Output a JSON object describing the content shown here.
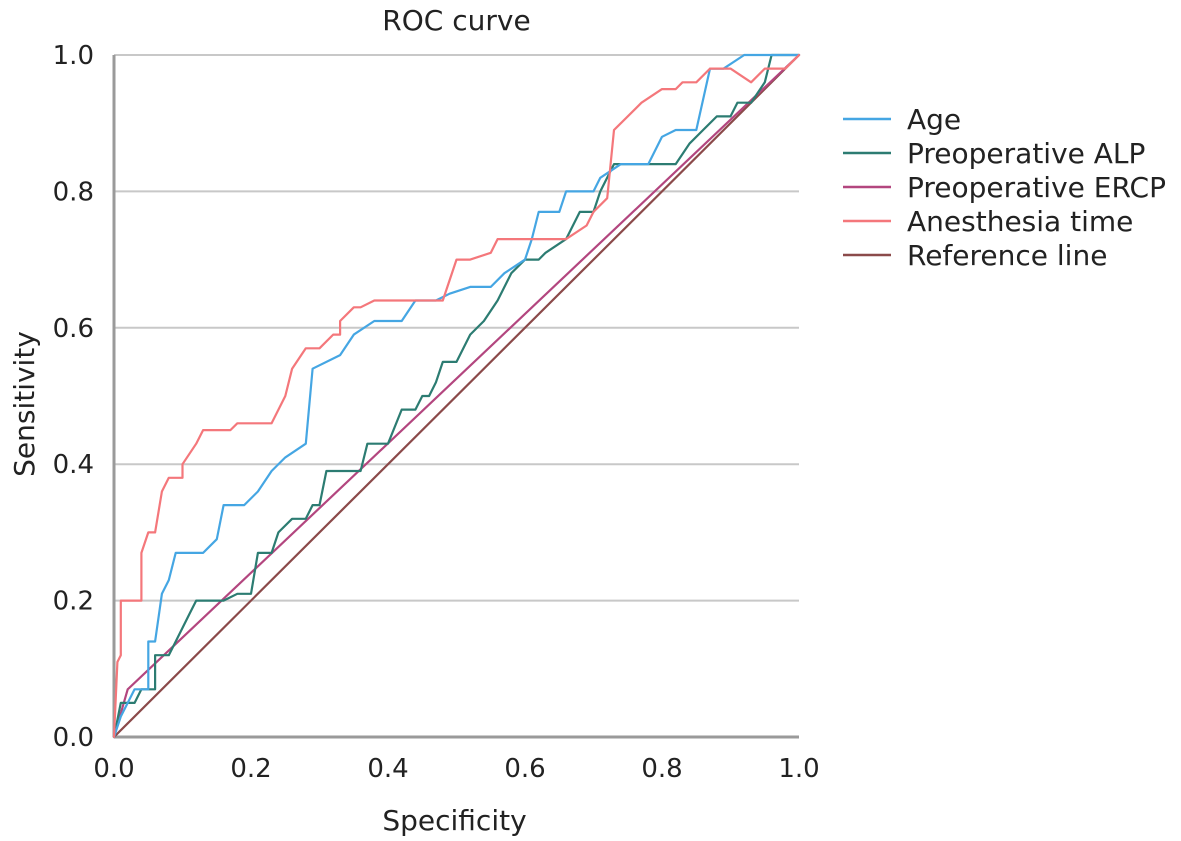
{
  "chart_data": {
    "type": "line",
    "title": "ROC curve",
    "xlabel": "Specificity",
    "ylabel": "Sensitivity",
    "xlim": [
      0,
      1
    ],
    "ylim": [
      0,
      1
    ],
    "xticks": [
      "0.0",
      "0.2",
      "0.4",
      "0.6",
      "0.8",
      "1.0"
    ],
    "yticks": [
      "0.0",
      "0.2",
      "0.4",
      "0.6",
      "0.8",
      "1.0"
    ],
    "grid": "horizontal",
    "legend_position": "right",
    "series": [
      {
        "name": "Age",
        "color": "#45a6e3",
        "points": [
          [
            0,
            0
          ],
          [
            0.01,
            0.03
          ],
          [
            0.02,
            0.05
          ],
          [
            0.03,
            0.07
          ],
          [
            0.05,
            0.07
          ],
          [
            0.05,
            0.14
          ],
          [
            0.06,
            0.14
          ],
          [
            0.07,
            0.21
          ],
          [
            0.08,
            0.23
          ],
          [
            0.09,
            0.27
          ],
          [
            0.13,
            0.27
          ],
          [
            0.15,
            0.29
          ],
          [
            0.16,
            0.34
          ],
          [
            0.19,
            0.34
          ],
          [
            0.21,
            0.36
          ],
          [
            0.23,
            0.39
          ],
          [
            0.25,
            0.41
          ],
          [
            0.28,
            0.43
          ],
          [
            0.29,
            0.54
          ],
          [
            0.33,
            0.56
          ],
          [
            0.35,
            0.59
          ],
          [
            0.38,
            0.61
          ],
          [
            0.42,
            0.61
          ],
          [
            0.44,
            0.64
          ],
          [
            0.47,
            0.64
          ],
          [
            0.49,
            0.65
          ],
          [
            0.52,
            0.66
          ],
          [
            0.55,
            0.66
          ],
          [
            0.57,
            0.68
          ],
          [
            0.6,
            0.7
          ],
          [
            0.61,
            0.73
          ],
          [
            0.62,
            0.77
          ],
          [
            0.65,
            0.77
          ],
          [
            0.66,
            0.8
          ],
          [
            0.7,
            0.8
          ],
          [
            0.71,
            0.82
          ],
          [
            0.74,
            0.84
          ],
          [
            0.78,
            0.84
          ],
          [
            0.8,
            0.88
          ],
          [
            0.82,
            0.89
          ],
          [
            0.85,
            0.89
          ],
          [
            0.87,
            0.98
          ],
          [
            0.89,
            0.98
          ],
          [
            0.92,
            1
          ],
          [
            1,
            1
          ]
        ]
      },
      {
        "name": "Preoperative ALP",
        "color": "#2c7c72",
        "points": [
          [
            0,
            0
          ],
          [
            0.01,
            0.05
          ],
          [
            0.03,
            0.05
          ],
          [
            0.04,
            0.07
          ],
          [
            0.06,
            0.07
          ],
          [
            0.06,
            0.12
          ],
          [
            0.08,
            0.12
          ],
          [
            0.09,
            0.14
          ],
          [
            0.1,
            0.16
          ],
          [
            0.11,
            0.18
          ],
          [
            0.12,
            0.2
          ],
          [
            0.16,
            0.2
          ],
          [
            0.18,
            0.21
          ],
          [
            0.2,
            0.21
          ],
          [
            0.21,
            0.27
          ],
          [
            0.23,
            0.27
          ],
          [
            0.24,
            0.3
          ],
          [
            0.26,
            0.32
          ],
          [
            0.28,
            0.32
          ],
          [
            0.29,
            0.34
          ],
          [
            0.3,
            0.34
          ],
          [
            0.31,
            0.39
          ],
          [
            0.36,
            0.39
          ],
          [
            0.37,
            0.43
          ],
          [
            0.4,
            0.43
          ],
          [
            0.42,
            0.48
          ],
          [
            0.44,
            0.48
          ],
          [
            0.45,
            0.5
          ],
          [
            0.46,
            0.5
          ],
          [
            0.47,
            0.52
          ],
          [
            0.48,
            0.55
          ],
          [
            0.5,
            0.55
          ],
          [
            0.52,
            0.59
          ],
          [
            0.54,
            0.61
          ],
          [
            0.56,
            0.64
          ],
          [
            0.58,
            0.68
          ],
          [
            0.6,
            0.7
          ],
          [
            0.62,
            0.7
          ],
          [
            0.63,
            0.71
          ],
          [
            0.66,
            0.73
          ],
          [
            0.68,
            0.77
          ],
          [
            0.7,
            0.77
          ],
          [
            0.71,
            0.8
          ],
          [
            0.73,
            0.84
          ],
          [
            0.82,
            0.84
          ],
          [
            0.84,
            0.87
          ],
          [
            0.86,
            0.89
          ],
          [
            0.88,
            0.91
          ],
          [
            0.9,
            0.91
          ],
          [
            0.91,
            0.93
          ],
          [
            0.93,
            0.93
          ],
          [
            0.95,
            0.96
          ],
          [
            0.96,
            1
          ],
          [
            0.98,
            1
          ],
          [
            1,
            1
          ]
        ]
      },
      {
        "name": "Preoperative ERCP",
        "color": "#b3467f",
        "points": [
          [
            0,
            0
          ],
          [
            0.02,
            0.07
          ],
          [
            1,
            1
          ]
        ]
      },
      {
        "name": "Anesthesia time",
        "color": "#f4777b",
        "points": [
          [
            0,
            0
          ],
          [
            0.005,
            0.11
          ],
          [
            0.01,
            0.12
          ],
          [
            0.01,
            0.2
          ],
          [
            0.04,
            0.2
          ],
          [
            0.04,
            0.27
          ],
          [
            0.05,
            0.3
          ],
          [
            0.06,
            0.3
          ],
          [
            0.07,
            0.36
          ],
          [
            0.08,
            0.38
          ],
          [
            0.1,
            0.38
          ],
          [
            0.1,
            0.4
          ],
          [
            0.12,
            0.43
          ],
          [
            0.13,
            0.45
          ],
          [
            0.17,
            0.45
          ],
          [
            0.18,
            0.46
          ],
          [
            0.23,
            0.46
          ],
          [
            0.25,
            0.5
          ],
          [
            0.26,
            0.54
          ],
          [
            0.28,
            0.57
          ],
          [
            0.3,
            0.57
          ],
          [
            0.32,
            0.59
          ],
          [
            0.33,
            0.59
          ],
          [
            0.33,
            0.61
          ],
          [
            0.35,
            0.63
          ],
          [
            0.36,
            0.63
          ],
          [
            0.38,
            0.64
          ],
          [
            0.48,
            0.64
          ],
          [
            0.5,
            0.7
          ],
          [
            0.52,
            0.7
          ],
          [
            0.55,
            0.71
          ],
          [
            0.56,
            0.73
          ],
          [
            0.66,
            0.73
          ],
          [
            0.69,
            0.75
          ],
          [
            0.7,
            0.77
          ],
          [
            0.72,
            0.79
          ],
          [
            0.73,
            0.89
          ],
          [
            0.77,
            0.93
          ],
          [
            0.8,
            0.95
          ],
          [
            0.82,
            0.95
          ],
          [
            0.83,
            0.96
          ],
          [
            0.85,
            0.96
          ],
          [
            0.87,
            0.98
          ],
          [
            0.9,
            0.98
          ],
          [
            0.93,
            0.96
          ],
          [
            0.95,
            0.98
          ],
          [
            0.98,
            0.98
          ],
          [
            1,
            1
          ]
        ]
      },
      {
        "name": "Reference line",
        "color": "#8b4a4a",
        "points": [
          [
            0,
            0
          ],
          [
            1,
            1
          ]
        ]
      }
    ]
  },
  "colors": {
    "grid": "#c8c8c8",
    "axis": "#9a9a9a"
  }
}
